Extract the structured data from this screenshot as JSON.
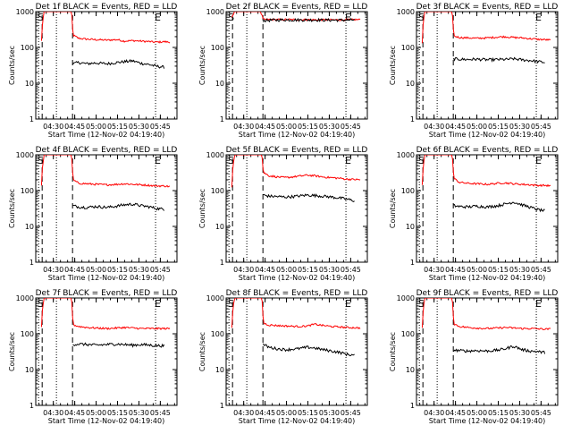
{
  "chart_data": {
    "type": "line",
    "x_start_time": "04:19:40",
    "x_tick_labels": [
      "04:30",
      "04:45",
      "05:00",
      "05:15",
      "05:30",
      "05:45"
    ],
    "x_tick_values_min": [
      10.33,
      25.33,
      40.33,
      55.33,
      70.33,
      85.33
    ],
    "xlim_min": [
      -2,
      97
    ],
    "ylim": [
      1,
      1000
    ],
    "y_scale": "log",
    "y_tick_labels": [
      "1",
      "10",
      "100",
      "1000"
    ],
    "xlabel": "Start Time (12-Nov-02 04:19:40)",
    "ylabel": "Counts/sec",
    "series_colors": {
      "events": "#000000",
      "lld": "#ff0000"
    },
    "markers": [
      {
        "label": "S",
        "x_min": 1.5
      },
      {
        "label": "E",
        "x_min": 83.5
      }
    ],
    "dotted_lines_x_min": [
      0,
      12.5,
      82
    ],
    "dashed_lines_x_min": [
      2.5,
      23.8
    ],
    "panels": [
      {
        "title": "Det 1f BLACK = Events, RED = LLD",
        "lld": {
          "x": [
            2,
            4,
            8,
            12,
            16,
            20,
            23,
            24,
            28,
            34,
            40,
            48,
            55,
            60,
            66,
            72,
            78,
            82,
            88,
            92
          ],
          "y": [
            150,
            1000,
            1000,
            1000,
            1000,
            1000,
            1000,
            220,
            180,
            170,
            165,
            160,
            165,
            150,
            155,
            150,
            145,
            140,
            145,
            140
          ]
        },
        "events": {
          "x": [
            24,
            28,
            34,
            40,
            48,
            55,
            60,
            66,
            72,
            78,
            82,
            88
          ],
          "y": [
            35,
            38,
            35,
            37,
            35,
            38,
            40,
            42,
            36,
            33,
            30,
            28
          ]
        }
      },
      {
        "title": "Det 2f BLACK = Events, RED = LLD",
        "lld": {
          "x": [
            2,
            4,
            8,
            12,
            16,
            20,
            22,
            24,
            30,
            40,
            50,
            60,
            70,
            80,
            92
          ],
          "y": [
            700,
            1000,
            1000,
            1000,
            1000,
            1000,
            1000,
            600,
            600,
            600,
            600,
            590,
            590,
            590,
            600
          ]
        },
        "events": {
          "x": [
            24,
            30,
            40,
            50,
            60,
            70,
            80,
            88
          ],
          "y": [
            560,
            580,
            590,
            585,
            585,
            580,
            580,
            590
          ]
        }
      },
      {
        "title": "Det 3f BLACK = Events, RED = LLD",
        "lld": {
          "x": [
            2,
            4,
            8,
            12,
            16,
            20,
            23,
            24,
            28,
            34,
            40,
            48,
            55,
            60,
            66,
            72,
            78,
            82,
            88,
            92
          ],
          "y": [
            130,
            1000,
            1000,
            1000,
            1000,
            1000,
            1000,
            210,
            190,
            185,
            180,
            185,
            195,
            200,
            190,
            185,
            175,
            170,
            165,
            160
          ]
        },
        "events": {
          "x": [
            24,
            28,
            34,
            40,
            48,
            55,
            60,
            66,
            72,
            78,
            82,
            88
          ],
          "y": [
            48,
            47,
            46,
            47,
            45,
            46,
            46,
            48,
            45,
            43,
            41,
            38
          ]
        }
      },
      {
        "title": "Det 4f BLACK = Events, RED = LLD",
        "lld": {
          "x": [
            2,
            4,
            8,
            12,
            16,
            20,
            23,
            24,
            28,
            34,
            40,
            48,
            55,
            60,
            66,
            72,
            78,
            82,
            88,
            92
          ],
          "y": [
            140,
            1000,
            1000,
            1000,
            1000,
            1000,
            1000,
            200,
            160,
            155,
            150,
            145,
            150,
            155,
            150,
            145,
            140,
            135,
            135,
            130
          ]
        },
        "events": {
          "x": [
            24,
            28,
            34,
            40,
            48,
            55,
            60,
            66,
            72,
            78,
            82,
            88
          ],
          "y": [
            38,
            35,
            34,
            36,
            34,
            37,
            40,
            42,
            38,
            35,
            32,
            30
          ]
        }
      },
      {
        "title": "Det 5f BLACK = Events, RED = LLD",
        "lld": {
          "x": [
            2,
            4,
            8,
            12,
            16,
            20,
            23,
            24,
            28,
            34,
            40,
            48,
            55,
            60,
            66,
            72,
            78,
            82,
            88,
            92
          ],
          "y": [
            130,
            1000,
            1000,
            1000,
            1000,
            1000,
            1000,
            320,
            260,
            240,
            230,
            250,
            270,
            260,
            240,
            230,
            220,
            210,
            205,
            200
          ]
        },
        "events": {
          "x": [
            24,
            28,
            34,
            40,
            48,
            55,
            60,
            66,
            72,
            78,
            82,
            88
          ],
          "y": [
            75,
            70,
            68,
            66,
            70,
            75,
            73,
            70,
            66,
            62,
            58,
            52
          ]
        }
      },
      {
        "title": "Det 6f BLACK = Events, RED = LLD",
        "lld": {
          "x": [
            2,
            4,
            8,
            12,
            16,
            20,
            23,
            24,
            28,
            34,
            40,
            48,
            55,
            60,
            66,
            72,
            78,
            82,
            88,
            92
          ],
          "y": [
            140,
            1000,
            1000,
            1000,
            1000,
            1000,
            1000,
            220,
            170,
            160,
            155,
            150,
            160,
            165,
            155,
            150,
            145,
            140,
            140,
            135
          ]
        },
        "events": {
          "x": [
            24,
            28,
            34,
            40,
            48,
            55,
            60,
            66,
            72,
            78,
            82,
            88
          ],
          "y": [
            38,
            36,
            35,
            37,
            35,
            38,
            42,
            48,
            40,
            34,
            30,
            27
          ]
        }
      },
      {
        "title": "Det 7f BLACK = Events, RED = LLD",
        "lld": {
          "x": [
            2,
            4,
            8,
            12,
            16,
            20,
            23,
            24,
            28,
            34,
            40,
            48,
            55,
            60,
            66,
            72,
            78,
            82,
            88,
            92
          ],
          "y": [
            150,
            1000,
            1000,
            1000,
            1000,
            1000,
            1000,
            180,
            160,
            150,
            145,
            140,
            145,
            150,
            145,
            140,
            140,
            140,
            140,
            140
          ]
        },
        "events": {
          "x": [
            24,
            28,
            34,
            40,
            48,
            55,
            60,
            66,
            72,
            78,
            82,
            88
          ],
          "y": [
            50,
            52,
            50,
            48,
            50,
            52,
            50,
            48,
            50,
            48,
            47,
            46
          ]
        }
      },
      {
        "title": "Det 8f BLACK = Events, RED = LLD",
        "lld": {
          "x": [
            2,
            4,
            8,
            12,
            16,
            20,
            23,
            24,
            28,
            34,
            40,
            48,
            55,
            60,
            66,
            72,
            78,
            82,
            88,
            92
          ],
          "y": [
            140,
            1000,
            1000,
            1000,
            1000,
            1000,
            1000,
            200,
            175,
            170,
            165,
            160,
            165,
            185,
            170,
            160,
            155,
            150,
            148,
            145
          ]
        },
        "events": {
          "x": [
            24,
            28,
            34,
            40,
            48,
            55,
            60,
            66,
            72,
            78,
            82,
            88
          ],
          "y": [
            50,
            42,
            38,
            36,
            38,
            42,
            40,
            36,
            33,
            30,
            27,
            25
          ]
        }
      },
      {
        "title": "Det 9f BLACK = Events, RED = LLD",
        "lld": {
          "x": [
            2,
            4,
            8,
            12,
            16,
            20,
            23,
            24,
            28,
            34,
            40,
            48,
            55,
            60,
            66,
            72,
            78,
            82,
            88,
            92
          ],
          "y": [
            140,
            1000,
            1000,
            1000,
            1000,
            1000,
            1000,
            190,
            160,
            150,
            145,
            140,
            145,
            150,
            145,
            140,
            140,
            138,
            135,
            135
          ]
        },
        "events": {
          "x": [
            24,
            28,
            34,
            40,
            48,
            55,
            60,
            66,
            72,
            78,
            82,
            88
          ],
          "y": [
            35,
            34,
            33,
            34,
            33,
            35,
            38,
            45,
            36,
            33,
            32,
            30
          ]
        }
      }
    ]
  }
}
